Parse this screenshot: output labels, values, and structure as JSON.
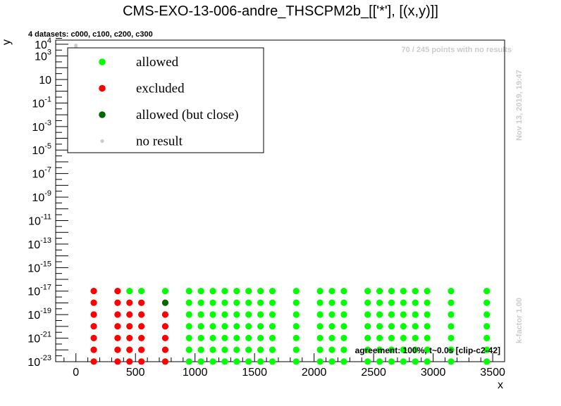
{
  "chart_data": {
    "type": "scatter",
    "title": "CMS-EXO-13-006-andre_THSCPM2b_[['*'], [(x,y)]]",
    "xlabel": "x",
    "ylabel": "y",
    "xlim": [
      -170,
      3600
    ],
    "ylog": true,
    "ylim_exp": [
      -23,
      4.35
    ],
    "x_ticks": [
      0,
      500,
      1000,
      1500,
      2000,
      2500,
      3000,
      3500
    ],
    "y_ticks": [
      {
        "exp": -23,
        "label": "10^-23"
      },
      {
        "exp": -21,
        "label": "10^-21"
      },
      {
        "exp": -19,
        "label": "10^-19"
      },
      {
        "exp": -17,
        "label": "10^-17"
      },
      {
        "exp": -15,
        "label": "10^-15"
      },
      {
        "exp": -13,
        "label": "10^-13"
      },
      {
        "exp": -11,
        "label": "10^-11"
      },
      {
        "exp": -9,
        "label": "10^-9"
      },
      {
        "exp": -7,
        "label": "10^-7"
      },
      {
        "exp": -5,
        "label": "10^-5"
      },
      {
        "exp": -3,
        "label": "10^-3"
      },
      {
        "exp": -1,
        "label": "10^-1"
      },
      {
        "exp": 1,
        "label": "10"
      },
      {
        "exp": 3,
        "label": "10^3"
      },
      {
        "exp": 4,
        "label": "10^4"
      }
    ],
    "subtitle": "4 datasets: c000, c100, c200, c300",
    "no_result_note": "70 / 245 points with no results",
    "date_note": "Nov 13, 2019, 19:47",
    "kfactor_note": "k-factor 1.00",
    "agreement_note": "agreement: 100%, t~0.0s [clip-c2-42]",
    "legend": [
      {
        "label": "allowed",
        "color": "#00ff00",
        "size": "large"
      },
      {
        "label": "excluded",
        "color": "#ff0000",
        "size": "large"
      },
      {
        "label": "allowed (but close)",
        "color": "#006600",
        "size": "large"
      },
      {
        "label": "no result",
        "color": "#cccccc",
        "size": "small"
      }
    ],
    "y_levels_exp": [
      -22.99,
      -21.99,
      -20.99,
      -19.99,
      -18.99,
      -17.99,
      -16.99
    ],
    "columns": [
      {
        "x": 150,
        "status": [
          "excluded",
          "excluded",
          "excluded",
          "excluded",
          "excluded",
          "excluded",
          "excluded"
        ]
      },
      {
        "x": 350,
        "status": [
          "excluded",
          "excluded",
          "excluded",
          "excluded",
          "excluded",
          "excluded",
          "excluded"
        ]
      },
      {
        "x": 450,
        "status": [
          "excluded",
          "excluded",
          "excluded",
          "excluded",
          "excluded",
          "excluded",
          "allowed"
        ]
      },
      {
        "x": 550,
        "status": [
          "excluded",
          "excluded",
          "excluded",
          "excluded",
          "excluded",
          "excluded",
          "allowed"
        ]
      },
      {
        "x": 750,
        "status": [
          "excluded",
          "excluded",
          "excluded",
          "excluded",
          "excluded",
          "allowed_close",
          "allowed"
        ]
      },
      {
        "x": 950,
        "status": [
          "allowed",
          "allowed",
          "allowed",
          "allowed",
          "allowed",
          "allowed",
          "allowed"
        ]
      },
      {
        "x": 1050,
        "status": [
          "allowed",
          "allowed",
          "allowed",
          "allowed",
          "allowed",
          "allowed",
          "allowed"
        ]
      },
      {
        "x": 1150,
        "status": [
          "allowed",
          "allowed",
          "allowed",
          "allowed",
          "allowed",
          "allowed",
          "allowed"
        ]
      },
      {
        "x": 1250,
        "status": [
          "allowed",
          "allowed",
          "allowed",
          "allowed",
          "allowed",
          "allowed",
          "allowed"
        ]
      },
      {
        "x": 1350,
        "status": [
          "allowed",
          "allowed",
          "allowed",
          "allowed",
          "allowed",
          "allowed",
          "allowed"
        ]
      },
      {
        "x": 1450,
        "status": [
          "allowed",
          "allowed",
          "allowed",
          "allowed",
          "allowed",
          "allowed",
          "allowed"
        ]
      },
      {
        "x": 1550,
        "status": [
          "allowed",
          "allowed",
          "allowed",
          "allowed",
          "allowed",
          "allowed",
          "allowed"
        ]
      },
      {
        "x": 1650,
        "status": [
          "allowed",
          "allowed",
          "allowed",
          "allowed",
          "allowed",
          "allowed",
          "allowed"
        ]
      },
      {
        "x": 1850,
        "status": [
          "allowed",
          "allowed",
          "allowed",
          "allowed",
          "allowed",
          "allowed",
          "allowed"
        ]
      },
      {
        "x": 2050,
        "status": [
          "allowed",
          "allowed",
          "allowed",
          "allowed",
          "allowed",
          "allowed",
          "allowed"
        ]
      },
      {
        "x": 2150,
        "status": [
          "allowed",
          "allowed",
          "allowed",
          "allowed",
          "allowed",
          "allowed",
          "allowed"
        ]
      },
      {
        "x": 2250,
        "status": [
          "allowed",
          "allowed",
          "allowed",
          "allowed",
          "allowed",
          "allowed",
          "allowed"
        ]
      },
      {
        "x": 2450,
        "status": [
          "allowed",
          "allowed",
          "allowed",
          "allowed",
          "allowed",
          "allowed",
          "allowed"
        ]
      },
      {
        "x": 2550,
        "status": [
          "allowed",
          "allowed",
          "allowed",
          "allowed",
          "allowed",
          "allowed",
          "allowed"
        ]
      },
      {
        "x": 2650,
        "status": [
          "allowed",
          "allowed",
          "allowed",
          "allowed",
          "allowed",
          "allowed",
          "allowed"
        ]
      },
      {
        "x": 2750,
        "status": [
          "allowed",
          "allowed",
          "allowed",
          "allowed",
          "allowed",
          "allowed",
          "allowed"
        ]
      },
      {
        "x": 2850,
        "status": [
          "allowed",
          "allowed",
          "allowed",
          "allowed",
          "allowed",
          "allowed",
          "allowed"
        ]
      },
      {
        "x": 2950,
        "status": [
          "allowed",
          "allowed",
          "allowed",
          "allowed",
          "allowed",
          "allowed",
          "allowed"
        ]
      },
      {
        "x": 3150,
        "status": [
          "allowed",
          "allowed",
          "allowed",
          "allowed",
          "allowed",
          "allowed",
          "allowed"
        ]
      },
      {
        "x": 3450,
        "status": [
          "allowed",
          "allowed",
          "allowed",
          "allowed",
          "allowed",
          "allowed",
          "allowed"
        ]
      }
    ],
    "no_result_points": [
      {
        "x": 0,
        "y_exp": 3.9
      },
      {
        "x": 0,
        "y_exp": 3.7
      },
      {
        "x": 0,
        "y_exp": 3.5
      },
      {
        "x": 0,
        "y_exp": 3.3
      },
      {
        "x": 0,
        "y_exp": 3.1
      },
      {
        "x": 0,
        "y_exp": 2.9
      },
      {
        "x": 0,
        "y_exp": 2.7
      },
      {
        "x": 0,
        "y_exp": 2.0
      },
      {
        "x": 0,
        "y_exp": 1.4
      }
    ],
    "colors": {
      "allowed": "#00ff00",
      "excluded": "#ff0000",
      "allowed_close": "#006600",
      "no_result": "#cccccc"
    }
  }
}
